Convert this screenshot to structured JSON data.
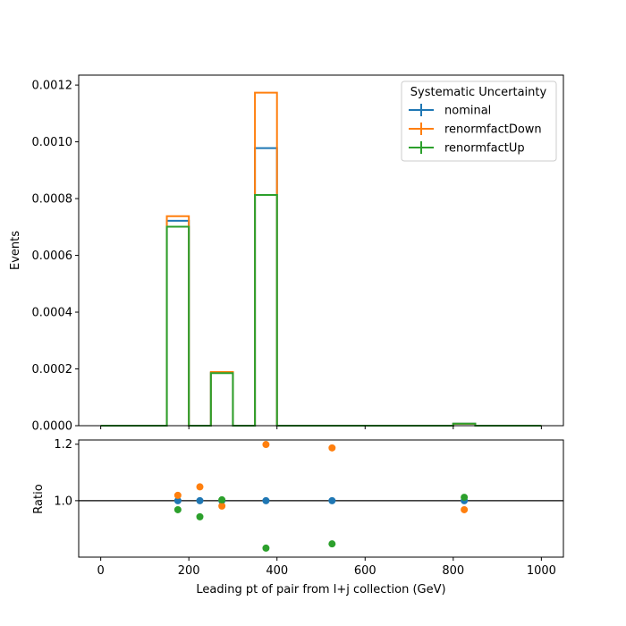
{
  "chart_data": [
    {
      "type": "line",
      "panel": "main",
      "drawstyle": "step",
      "xlim": [
        -50,
        1050
      ],
      "ylim": [
        0,
        0.001235
      ],
      "ylabel": "Events",
      "yticks": [
        "0.0000",
        "0.0002",
        "0.0004",
        "0.0006",
        "0.0008",
        "0.0010",
        "0.0012"
      ],
      "ytick_values": [
        0,
        0.0002,
        0.0004,
        0.0006,
        0.0008,
        0.001,
        0.0012
      ],
      "bin_edges": [
        0,
        50,
        100,
        150,
        200,
        250,
        300,
        350,
        400,
        450,
        500,
        550,
        600,
        650,
        700,
        750,
        800,
        850,
        900,
        950,
        1000
      ],
      "legend": {
        "title": "Systematic Uncertainty",
        "placement": "top-right"
      },
      "series": [
        {
          "name": "nominal",
          "color": "#1f77b4",
          "values": [
            0,
            0,
            0,
            0.000722,
            0,
            0.000187,
            0,
            0.000978,
            0,
            0,
            0,
            0,
            0,
            0,
            0,
            0,
            7e-06,
            0,
            0,
            0
          ]
        },
        {
          "name": "renormfactDown",
          "color": "#ff7f0e",
          "values": [
            0,
            0,
            0,
            0.000738,
            0,
            0.000189,
            0,
            0.001173,
            0,
            0,
            0,
            0,
            0,
            0,
            0,
            0,
            6.8e-06,
            0,
            0,
            0
          ]
        },
        {
          "name": "renormfactUp",
          "color": "#2ca02c",
          "values": [
            0,
            0,
            0,
            0.000701,
            0,
            0.000185,
            0,
            0.000813,
            0,
            0,
            0,
            0,
            0,
            0,
            0,
            0,
            7.1e-06,
            0,
            0,
            0
          ]
        }
      ]
    },
    {
      "type": "scatter",
      "panel": "ratio",
      "xlim": [
        -50,
        1050
      ],
      "ylim": [
        0.8,
        1.215
      ],
      "xlabel": "Leading pt of pair from l+j collection (GeV)",
      "ylabel": "Ratio",
      "xticks": [
        "0",
        "200",
        "400",
        "600",
        "800",
        "1000"
      ],
      "xtick_values": [
        0,
        200,
        400,
        600,
        800,
        1000
      ],
      "yticks": [
        "1.0",
        "1.2"
      ],
      "ytick_values": [
        1.0,
        1.2
      ],
      "reference_line": 1.0,
      "series": [
        {
          "name": "nominal",
          "color": "#1f77b4",
          "x": [
            175,
            225,
            275,
            375,
            525,
            825
          ],
          "y": [
            1.0,
            1.0,
            1.0,
            1.0,
            1.0,
            1.0
          ]
        },
        {
          "name": "renormfactDown",
          "color": "#ff7f0e",
          "x": [
            175,
            225,
            275,
            375,
            525,
            825
          ],
          "y": [
            1.019,
            1.049,
            0.981,
            1.199,
            1.187,
            0.968
          ]
        },
        {
          "name": "renormfactUp",
          "color": "#2ca02c",
          "x": [
            175,
            225,
            275,
            375,
            525,
            825
          ],
          "y": [
            0.968,
            0.943,
            1.003,
            0.832,
            0.847,
            1.012
          ]
        }
      ]
    }
  ]
}
